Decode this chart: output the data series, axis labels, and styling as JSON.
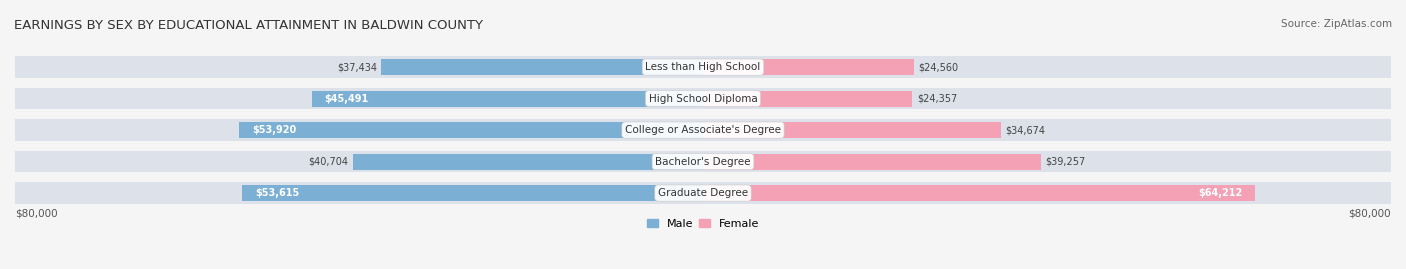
{
  "title": "EARNINGS BY SEX BY EDUCATIONAL ATTAINMENT IN BALDWIN COUNTY",
  "source": "Source: ZipAtlas.com",
  "categories": [
    "Less than High School",
    "High School Diploma",
    "College or Associate's Degree",
    "Bachelor's Degree",
    "Graduate Degree"
  ],
  "male_values": [
    37434,
    45491,
    53920,
    40704,
    53615
  ],
  "female_values": [
    24560,
    24357,
    34674,
    39257,
    64212
  ],
  "male_color": "#7bafd4",
  "female_color": "#f4a0b5",
  "bar_bg_color": "#e8eaf0",
  "max_value": 80000,
  "x_label_left": "$80,000",
  "x_label_right": "$80,000",
  "background_color": "#f5f5f5",
  "bar_bg_light": "#dde1ea",
  "label_color_dark": "#555555",
  "label_color_white": "#ffffff"
}
